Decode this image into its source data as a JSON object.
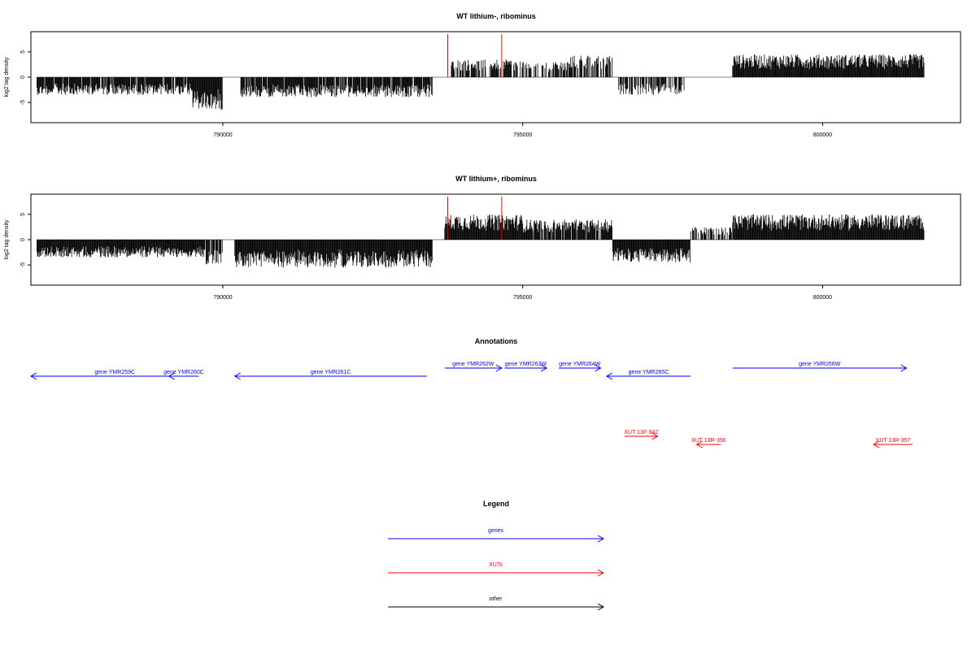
{
  "chart_data": [
    {
      "type": "bar",
      "title": "WT lithium-, ribominus",
      "ylabel": "log2 tag density",
      "xlim": [
        786800,
        802300
      ],
      "ylim": [
        -9,
        9
      ],
      "xticks": [
        790000,
        795000,
        800000
      ],
      "yticks": [
        -5,
        0,
        5
      ],
      "grid": false,
      "segments": [
        {
          "from": 786900,
          "to": 789500,
          "sign": -1,
          "amp": 3.5,
          "density": 0.9
        },
        {
          "from": 789500,
          "to": 790000,
          "sign": -1,
          "amp": 6.5,
          "density": 1.0
        },
        {
          "from": 790300,
          "to": 793500,
          "sign": -1,
          "amp": 4.0,
          "density": 0.9
        },
        {
          "from": 793800,
          "to": 795000,
          "sign": 1,
          "amp": 3.5,
          "density": 0.7
        },
        {
          "from": 795000,
          "to": 795800,
          "sign": 1,
          "amp": 3.0,
          "density": 0.5
        },
        {
          "from": 795800,
          "to": 796500,
          "sign": 1,
          "amp": 4.5,
          "density": 0.7
        },
        {
          "from": 796600,
          "to": 797700,
          "sign": -1,
          "amp": 3.5,
          "density": 0.7
        },
        {
          "from": 798500,
          "to": 801700,
          "sign": 1,
          "amp": 4.5,
          "density": 1.0
        }
      ],
      "markers": [
        {
          "x": 793750,
          "y": 8.5,
          "color": "#ff0000"
        },
        {
          "x": 794650,
          "y": 8.5,
          "color": "#ff0000"
        }
      ]
    },
    {
      "type": "bar",
      "title": "WT lithium+, ribominus",
      "ylabel": "log2 tag density",
      "xlim": [
        786800,
        802300
      ],
      "ylim": [
        -9,
        9
      ],
      "xticks": [
        790000,
        795000,
        800000
      ],
      "yticks": [
        -5,
        0,
        5
      ],
      "grid": false,
      "segments": [
        {
          "from": 786900,
          "to": 789700,
          "sign": -1,
          "amp": 3.5,
          "density": 1.0
        },
        {
          "from": 789700,
          "to": 790000,
          "sign": -1,
          "amp": 5.0,
          "density": 0.8
        },
        {
          "from": 790200,
          "to": 793500,
          "sign": -1,
          "amp": 5.5,
          "density": 1.0
        },
        {
          "from": 793700,
          "to": 795000,
          "sign": 1,
          "amp": 5.0,
          "density": 1.0
        },
        {
          "from": 795000,
          "to": 796500,
          "sign": 1,
          "amp": 4.0,
          "density": 0.9
        },
        {
          "from": 796500,
          "to": 797800,
          "sign": -1,
          "amp": 4.5,
          "density": 1.0
        },
        {
          "from": 797800,
          "to": 798500,
          "sign": 1,
          "amp": 2.5,
          "density": 0.6
        },
        {
          "from": 798500,
          "to": 801700,
          "sign": 1,
          "amp": 5.0,
          "density": 1.0
        }
      ],
      "markers": [
        {
          "x": 793750,
          "y": 8.5,
          "color": "#ff0000"
        },
        {
          "x": 794650,
          "y": 8.5,
          "color": "#ff0000"
        }
      ]
    }
  ],
  "annotations": {
    "title": "Annotations",
    "gene_color": "#0000ff",
    "xut_color": "#ff0000",
    "genes": [
      {
        "label": "gene YMR259C",
        "start": 786800,
        "end": 789600,
        "strand": "-",
        "row": 1
      },
      {
        "label": "gene YMR260C",
        "start": 789100,
        "end": 789600,
        "strand": "-",
        "row": 1
      },
      {
        "label": "gene YMR261C",
        "start": 790200,
        "end": 793400,
        "strand": "-",
        "row": 1
      },
      {
        "label": "gene YMR262W",
        "start": 793700,
        "end": 794650,
        "strand": "+",
        "row": 0
      },
      {
        "label": "gene YMR263W",
        "start": 794700,
        "end": 795400,
        "strand": "+",
        "row": 0
      },
      {
        "label": "gene YMR264W",
        "start": 795600,
        "end": 796300,
        "strand": "+",
        "row": 0
      },
      {
        "label": "gene YMR265C",
        "start": 796400,
        "end": 797800,
        "strand": "-",
        "row": 1
      },
      {
        "label": "gene YMR266W",
        "start": 798500,
        "end": 801400,
        "strand": "+",
        "row": 0
      }
    ],
    "xuts": [
      {
        "label": "XUT 13F-342",
        "start": 796700,
        "end": 797250,
        "strand": "+",
        "row": 0
      },
      {
        "label": "XUT 13R-356",
        "start": 797900,
        "end": 798300,
        "strand": "-",
        "row": 1
      },
      {
        "label": "XUT 13R-357",
        "start": 800850,
        "end": 801500,
        "strand": "-",
        "row": 1
      }
    ]
  },
  "legend": {
    "title": "Legend",
    "items": [
      {
        "label": "genes",
        "color": "#0000ff"
      },
      {
        "label": "XUTs",
        "color": "#ff0000"
      },
      {
        "label": "other",
        "color": "#000000"
      }
    ]
  }
}
